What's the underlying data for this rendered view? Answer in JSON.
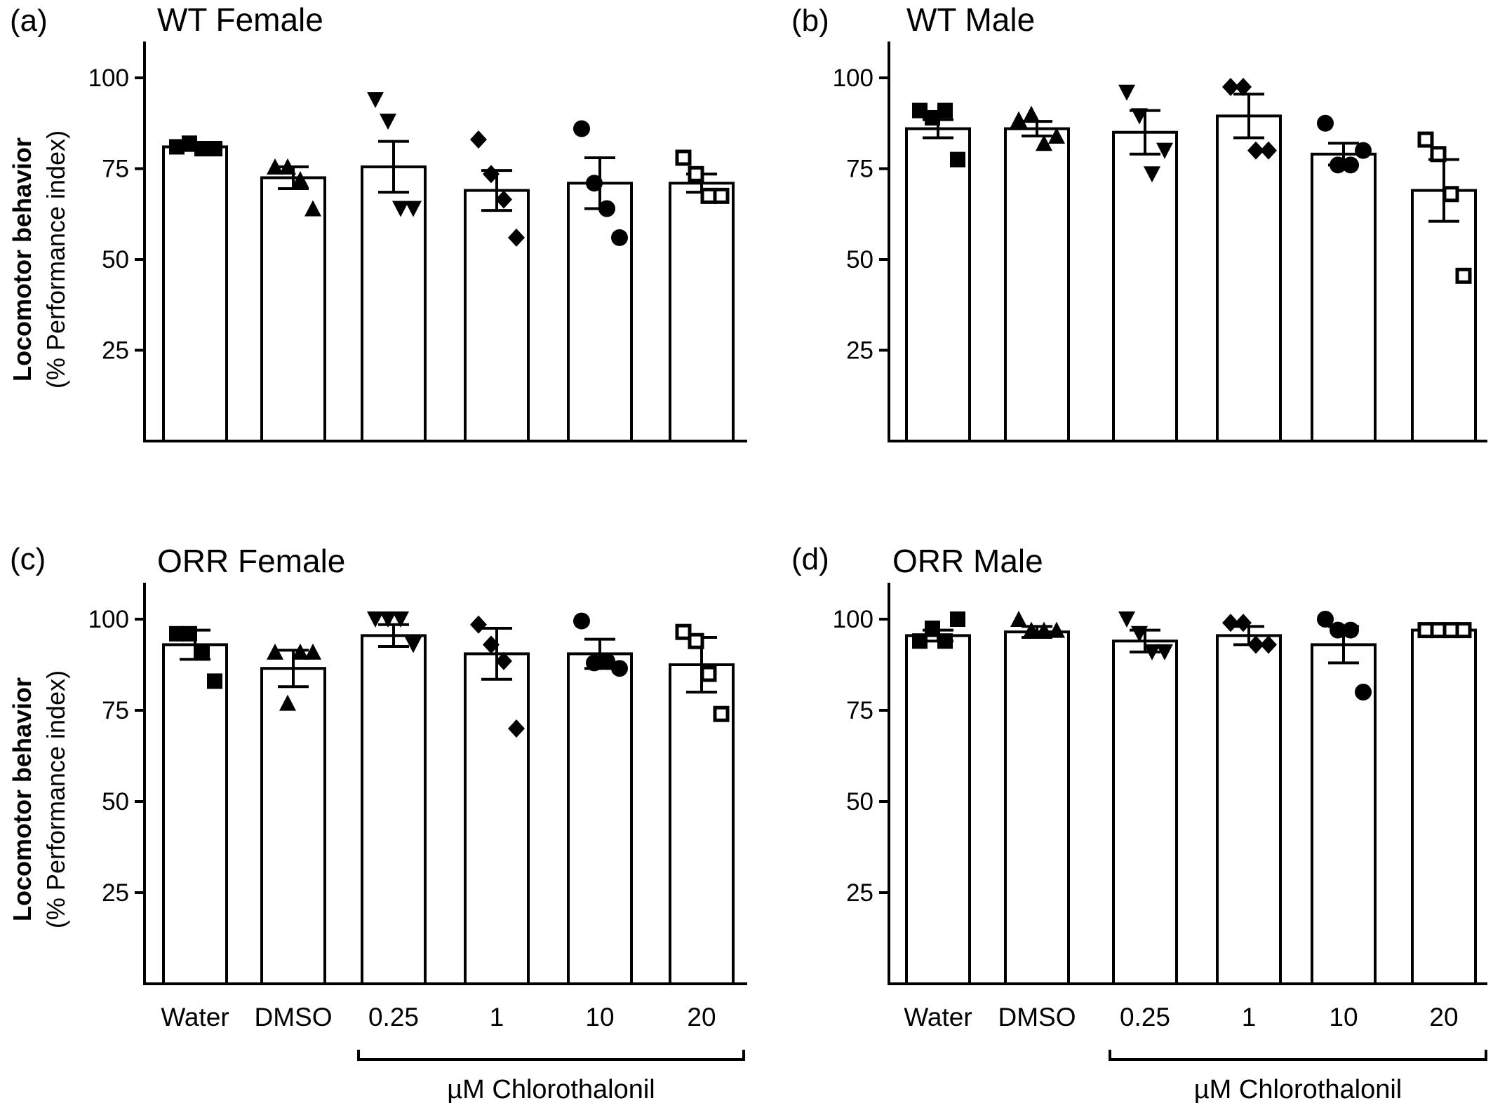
{
  "figure": {
    "ylabel_bold": "Locomotor behavior",
    "ylabel_sub": "(% Performance index)",
    "bracket_label": "µM Chlorothalonil"
  },
  "chart_data": [
    {
      "type": "bar",
      "panel_letter": "(a)",
      "title": "WT Female",
      "categories": [
        "Water",
        "DMSO",
        "0.25",
        "1",
        "10",
        "20"
      ],
      "show_categories": false,
      "yticks": [
        25,
        50,
        75,
        100
      ],
      "ylim": [
        0,
        110
      ],
      "series": [
        {
          "values": [
            81,
            72.5,
            75.5,
            69,
            71,
            71
          ],
          "sem": [
            1,
            3,
            7,
            5.5,
            7,
            2.5
          ],
          "points": [
            [
              81,
              82,
              80.5,
              80.5
            ],
            [
              75.5,
              75.5,
              72,
              64
            ],
            [
              94,
              88,
              64,
              64
            ],
            [
              83,
              73.5,
              66.5,
              56
            ],
            [
              86,
              71,
              64,
              56
            ],
            [
              78,
              73.5,
              67.5,
              67.5
            ]
          ]
        }
      ]
    },
    {
      "type": "bar",
      "panel_letter": "(b)",
      "title": "WT Male",
      "categories": [
        "Water",
        "DMSO",
        "0.25",
        "1",
        "10",
        "20"
      ],
      "show_categories": false,
      "yticks": [
        25,
        50,
        75,
        100
      ],
      "ylim": [
        0,
        110
      ],
      "series": [
        {
          "values": [
            86,
            86,
            85,
            89.5,
            79,
            69
          ],
          "sem": [
            2.5,
            2,
            6,
            6,
            3,
            8.5
          ],
          "points": [
            [
              91,
              89,
              91,
              77.5
            ],
            [
              88.5,
              90,
              82,
              84
            ],
            [
              96,
              89.5,
              73.5,
              80
            ],
            [
              97.5,
              97.5,
              80,
              80
            ],
            [
              87.5,
              76,
              76,
              80
            ],
            [
              83,
              79,
              68,
              45.5
            ]
          ]
        }
      ]
    },
    {
      "type": "bar",
      "panel_letter": "(c)",
      "title": "ORR Female",
      "categories": [
        "Water",
        "DMSO",
        "0.25",
        "1",
        "10",
        "20"
      ],
      "show_categories": true,
      "yticks": [
        25,
        50,
        75,
        100
      ],
      "ylim": [
        0,
        110
      ],
      "series": [
        {
          "values": [
            93,
            86.5,
            95.5,
            90.5,
            90.5,
            87.5
          ],
          "sem": [
            4,
            5,
            3,
            7,
            4,
            7.5
          ],
          "points": [
            [
              96,
              96,
              91,
              83
            ],
            [
              91,
              77,
              91,
              91
            ],
            [
              100,
              100,
              100,
              93
            ],
            [
              98.5,
              93,
              88.5,
              70
            ],
            [
              99.5,
              88,
              88.5,
              86.5
            ],
            [
              96.5,
              94,
              85,
              74
            ]
          ]
        }
      ]
    },
    {
      "type": "bar",
      "panel_letter": "(d)",
      "title": "ORR Male",
      "categories": [
        "Water",
        "DMSO",
        "0.25",
        "1",
        "10",
        "20"
      ],
      "show_categories": true,
      "yticks": [
        25,
        50,
        75,
        100
      ],
      "ylim": [
        0,
        110
      ],
      "series": [
        {
          "values": [
            95.5,
            96.5,
            94,
            95.5,
            93,
            97
          ],
          "sem": [
            1.5,
            1.5,
            3,
            2.5,
            5,
            0
          ],
          "points": [
            [
              94,
              97.5,
              94,
              100
            ],
            [
              100,
              97,
              97,
              97
            ],
            [
              100,
              96,
              91,
              91
            ],
            [
              99,
              99,
              93,
              93
            ],
            [
              100,
              97,
              97,
              80
            ],
            [
              97,
              97,
              97,
              97
            ]
          ]
        }
      ]
    }
  ]
}
